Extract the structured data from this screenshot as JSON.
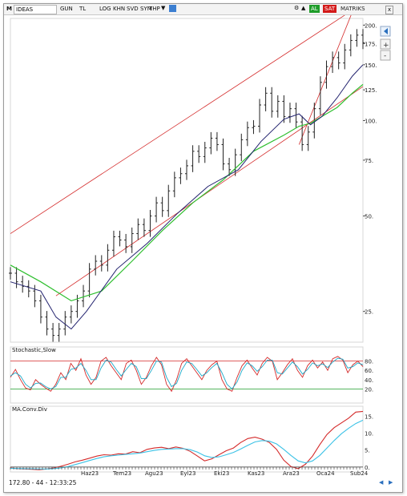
{
  "toolbar": {
    "m_label": "M",
    "symbol": "IDEAS",
    "period_buttons": [
      "GUN",
      "TL"
    ],
    "option_buttons": [
      "LOG",
      "KHN",
      "SVD",
      "SYM",
      "THP"
    ],
    "al_label": "AL",
    "sat_label": "SAT",
    "matriks_label": "MATRIKS",
    "close_label": "x"
  },
  "status": {
    "readout": "172.80 - 44 - 12:33:25"
  },
  "colors": {
    "channel": "#d42a2a",
    "ma_long": "#2fbf2f",
    "ma_short": "#22226e",
    "price_bars": "#222222",
    "stoch_k": "#d42a2a",
    "stoch_d": "#19a9c9",
    "macd": "#d42a2a",
    "signal": "#3bc2e6",
    "level_line": "#1f9d2a"
  },
  "chart_data": [
    {
      "type": "bar",
      "title": "",
      "scale": "log",
      "ylim": [
        20,
        210
      ],
      "y_ticks": [
        25,
        50,
        75,
        100,
        125,
        150,
        175,
        200
      ],
      "y_tick_labels": [
        "25.",
        "50.",
        "75.",
        "100.",
        "125.",
        "150.",
        "175.",
        "200."
      ],
      "x_tick_labels": [
        "Haz23",
        "Tem23",
        "Agu23",
        "Eyl23",
        "Eki23",
        "Kas23",
        "Ara23",
        "Oca24",
        "Sub24"
      ],
      "series": [
        {
          "kind": "price",
          "x": [
            0,
            8,
            16,
            24,
            32,
            40,
            48,
            56,
            64,
            72,
            80,
            88,
            96,
            104,
            112,
            120,
            128,
            136,
            144,
            152,
            160,
            168,
            176,
            184,
            192,
            200,
            208,
            216,
            224,
            232,
            240,
            248,
            256,
            264,
            272,
            280,
            288,
            296,
            304,
            312,
            320,
            328,
            336,
            344,
            352,
            360,
            368,
            376,
            384,
            392,
            400,
            408,
            416,
            424,
            432,
            440,
            448,
            456,
            464
          ],
          "values": [
            33,
            31,
            30,
            29,
            27,
            24,
            22,
            21,
            22,
            24,
            25,
            27,
            29,
            34,
            36,
            35,
            39,
            43,
            42,
            40,
            44,
            47,
            45,
            50,
            55,
            52,
            60,
            66,
            68,
            72,
            80,
            77,
            82,
            88,
            84,
            73,
            70,
            78,
            87,
            95,
            96,
            112,
            122,
            107,
            115,
            103,
            109,
            99,
            84,
            92,
            109,
            132,
            148,
            158,
            152,
            167,
            179,
            186,
            176
          ]
        },
        {
          "kind": "ma_short",
          "x": [
            0,
            40,
            60,
            80,
            100,
            140,
            180,
            220,
            260,
            300,
            330,
            360,
            380,
            395,
            410,
            430,
            450,
            464
          ],
          "values": [
            31,
            29,
            24,
            22,
            25,
            34,
            41,
            51,
            62,
            70,
            86,
            101,
            105,
            97,
            103,
            118,
            138,
            150
          ]
        },
        {
          "kind": "ma_long",
          "x": [
            0,
            40,
            80,
            120,
            160,
            200,
            240,
            280,
            320,
            360,
            380,
            395,
            410,
            430,
            450,
            464
          ],
          "values": [
            35,
            31,
            27,
            29,
            36,
            45,
            55,
            65,
            80,
            90,
            96,
            98,
            103,
            110,
            122,
            130
          ]
        }
      ],
      "channel": {
        "upper": [
          [
            0,
            44
          ],
          [
            440,
            215
          ]
        ],
        "lower": [
          [
            60,
            28
          ],
          [
            464,
            128
          ]
        ],
        "fan": [
          [
            380,
            84
          ],
          [
            450,
            220
          ]
        ]
      }
    },
    {
      "type": "line",
      "title": "Stochastic,Slow",
      "ylim": [
        0,
        100
      ],
      "y_ticks": [
        20,
        40,
        60,
        80
      ],
      "y_tick_labels": [
        "20.",
        "40.",
        "60.",
        "80."
      ],
      "levels": [
        20,
        80
      ],
      "series": [
        {
          "kind": "stoch_k",
          "values": [
            45,
            62,
            40,
            22,
            18,
            40,
            30,
            22,
            15,
            30,
            55,
            40,
            75,
            60,
            85,
            50,
            30,
            45,
            80,
            88,
            70,
            55,
            40,
            75,
            82,
            60,
            30,
            45,
            70,
            88,
            72,
            30,
            15,
            40,
            75,
            85,
            70,
            55,
            40,
            60,
            72,
            80,
            40,
            20,
            15,
            45,
            70,
            82,
            65,
            50,
            75,
            88,
            80,
            40,
            55,
            72,
            85,
            60,
            45,
            70,
            82,
            65,
            78,
            60,
            85,
            90,
            82,
            55,
            72,
            80,
            68
          ]
        },
        {
          "kind": "stoch_d",
          "values": [
            48,
            55,
            48,
            30,
            22,
            32,
            33,
            25,
            20,
            25,
            45,
            45,
            62,
            65,
            75,
            60,
            40,
            40,
            65,
            82,
            78,
            62,
            48,
            62,
            75,
            68,
            42,
            42,
            60,
            80,
            78,
            45,
            25,
            32,
            60,
            78,
            75,
            62,
            48,
            55,
            66,
            75,
            55,
            30,
            20,
            35,
            60,
            76,
            70,
            58,
            68,
            82,
            82,
            55,
            52,
            65,
            78,
            68,
            52,
            62,
            76,
            70,
            74,
            66,
            78,
            86,
            84,
            65,
            68,
            76,
            72
          ]
        }
      ]
    },
    {
      "type": "line",
      "title": "MA.Conv.Div",
      "ylim": [
        -1,
        16.5
      ],
      "y_ticks": [
        0,
        5,
        10,
        15
      ],
      "y_tick_labels": [
        "0.",
        "5.",
        "10.",
        "15."
      ],
      "zero_line": 0,
      "series": [
        {
          "kind": "macd",
          "values": [
            -0.3,
            -0.5,
            -0.6,
            -0.7,
            -0.8,
            -0.6,
            -0.3,
            0.2,
            0.8,
            1.5,
            2.0,
            2.6,
            3.2,
            3.6,
            3.5,
            3.9,
            3.8,
            4.5,
            4.2,
            5.2,
            5.6,
            5.8,
            5.4,
            5.9,
            5.5,
            4.6,
            3.2,
            1.8,
            2.4,
            3.6,
            4.8,
            5.6,
            7.2,
            8.4,
            8.8,
            8.2,
            7.2,
            5.2,
            2.0,
            0.1,
            -0.5,
            0.8,
            3.2,
            6.6,
            9.6,
            11.6,
            13.0,
            14.4,
            16.2,
            16.4
          ]
        },
        {
          "kind": "signal",
          "values": [
            -0.4,
            -0.45,
            -0.5,
            -0.55,
            -0.6,
            -0.6,
            -0.5,
            -0.3,
            0.1,
            0.7,
            1.3,
            1.9,
            2.5,
            3.0,
            3.3,
            3.5,
            3.7,
            3.9,
            4.1,
            4.5,
            4.9,
            5.2,
            5.3,
            5.4,
            5.4,
            5.1,
            4.4,
            3.3,
            2.8,
            3.0,
            3.6,
            4.3,
            5.3,
            6.4,
            7.4,
            7.8,
            7.6,
            6.8,
            5.2,
            3.4,
            1.8,
            1.2,
            1.8,
            3.4,
            5.6,
            7.8,
            9.8,
            11.4,
            12.8,
            13.8
          ]
        }
      ]
    }
  ]
}
